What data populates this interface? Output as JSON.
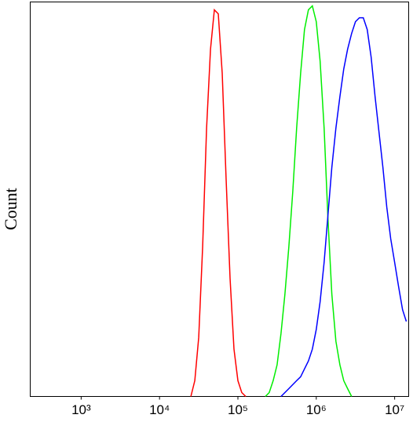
{
  "chart_data": {
    "type": "line",
    "ylabel": "Count",
    "xscale": "log",
    "xlim": [
      224,
      15100000
    ],
    "ylim": [
      0,
      100
    ],
    "xticks": [
      {
        "value": 1000,
        "label": "10³"
      },
      {
        "value": 10000,
        "label": "10⁴"
      },
      {
        "value": 100000,
        "label": "10⁵"
      },
      {
        "value": 1000000,
        "label": "10⁶"
      },
      {
        "value": 10000000,
        "label": "10⁷"
      }
    ],
    "x": [
      20000,
      22400,
      25100,
      28200,
      31600,
      35500,
      39800,
      44700,
      50100,
      56200,
      63100,
      70800,
      79400,
      89100,
      100000,
      112000,
      126000,
      141000,
      158000,
      178000,
      200000,
      224000,
      251000,
      282000,
      316000,
      355000,
      398000,
      447000,
      501000,
      562000,
      631000,
      708000,
      794000,
      891000,
      1000000,
      1120000,
      1260000,
      1410000,
      1580000,
      1780000,
      2000000,
      2240000,
      2510000,
      2820000,
      3160000,
      3550000,
      3980000,
      4470000,
      5010000,
      5620000,
      6310000,
      7080000,
      7940000,
      8910000,
      10000000,
      11200000,
      12600000,
      14100000
    ],
    "series": [
      {
        "color": "#ff0000",
        "values": [
          null,
          null,
          0,
          4,
          15,
          38,
          68,
          88,
          98,
          97,
          82,
          55,
          30,
          12,
          4,
          1,
          0,
          null,
          null,
          null,
          null,
          null,
          null,
          null,
          null,
          null,
          null,
          null,
          null,
          null,
          null,
          null,
          null,
          null,
          null,
          null,
          null,
          null,
          null,
          null,
          null,
          null,
          null,
          null,
          null,
          null,
          null,
          null,
          null,
          null,
          null,
          null,
          null,
          null,
          null,
          null,
          null,
          null
        ]
      },
      {
        "color": "#00ee00",
        "values": [
          null,
          null,
          null,
          null,
          null,
          null,
          null,
          null,
          null,
          null,
          null,
          null,
          null,
          null,
          null,
          null,
          null,
          null,
          null,
          null,
          null,
          0,
          1,
          4,
          8,
          16,
          26,
          38,
          52,
          68,
          82,
          93,
          98,
          99,
          95,
          85,
          68,
          45,
          26,
          14,
          8,
          4,
          2,
          0,
          null,
          null,
          null,
          null,
          null,
          null,
          null,
          null,
          null,
          null,
          null,
          null,
          null,
          null
        ]
      },
      {
        "color": "#0000ff",
        "values": [
          null,
          null,
          null,
          null,
          null,
          null,
          null,
          null,
          null,
          null,
          null,
          null,
          null,
          null,
          null,
          null,
          null,
          null,
          null,
          null,
          null,
          null,
          null,
          null,
          null,
          0,
          1,
          2,
          3,
          4,
          5,
          7,
          9,
          12,
          17,
          24,
          34,
          46,
          58,
          68,
          76,
          83,
          88,
          92,
          95,
          96,
          96,
          93,
          86,
          76,
          67,
          58,
          48,
          40,
          34,
          28,
          22,
          19
        ]
      }
    ]
  }
}
